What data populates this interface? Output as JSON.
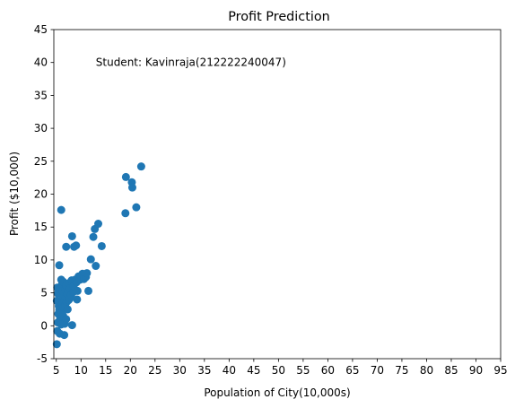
{
  "chart_data": {
    "type": "scatter",
    "title": "Profit Prediction",
    "xlabel": "Population of City(10,000s)",
    "ylabel": "Profit ($10,000)",
    "xlim": [
      4.5,
      95
    ],
    "ylim": [
      -5,
      45
    ],
    "x_ticks": [
      5,
      10,
      15,
      20,
      25,
      30,
      35,
      40,
      45,
      50,
      55,
      60,
      65,
      70,
      75,
      80,
      85,
      90,
      95
    ],
    "y_ticks": [
      -5,
      0,
      5,
      10,
      15,
      20,
      25,
      30,
      35,
      40,
      45
    ],
    "grid": false,
    "annotation": {
      "text": "Student: Kavinraja(212222240047)",
      "x": 13.0,
      "y": 40.0
    },
    "color": "#1f77b4",
    "points": [
      [
        5.1,
        -2.8
      ],
      [
        5.2,
        -0.8
      ],
      [
        5.3,
        0.5
      ],
      [
        5.4,
        1.8
      ],
      [
        5.5,
        3.0
      ],
      [
        5.1,
        3.8
      ],
      [
        5.3,
        4.9
      ],
      [
        5.2,
        5.8
      ],
      [
        5.6,
        2.4
      ],
      [
        5.7,
        -1.2
      ],
      [
        5.8,
        1.1
      ],
      [
        5.9,
        3.5
      ],
      [
        5.7,
        5.6
      ],
      [
        5.6,
        9.2
      ],
      [
        6.0,
        17.6
      ],
      [
        6.0,
        0.2
      ],
      [
        6.1,
        2.0
      ],
      [
        6.2,
        3.3
      ],
      [
        6.3,
        4.5
      ],
      [
        6.1,
        6.2
      ],
      [
        6.0,
        7.0
      ],
      [
        6.4,
        1.5
      ],
      [
        6.5,
        2.8
      ],
      [
        6.6,
        -1.4
      ],
      [
        6.3,
        5.3
      ],
      [
        6.4,
        6.7
      ],
      [
        6.7,
        0.3
      ],
      [
        6.8,
        3.0
      ],
      [
        6.9,
        4.3
      ],
      [
        6.8,
        5.4
      ],
      [
        7.0,
        1.0
      ],
      [
        7.0,
        6.1
      ],
      [
        7.1,
        3.6
      ],
      [
        7.2,
        4.8
      ],
      [
        7.0,
        12.0
      ],
      [
        7.3,
        2.5
      ],
      [
        7.4,
        5.2
      ],
      [
        7.5,
        3.9
      ],
      [
        7.6,
        6.5
      ],
      [
        7.7,
        4.1
      ],
      [
        7.8,
        5.7
      ],
      [
        8.0,
        4.7
      ],
      [
        8.1,
        6.9
      ],
      [
        8.2,
        0.1
      ],
      [
        8.2,
        13.6
      ],
      [
        8.4,
        5.1
      ],
      [
        8.5,
        6.0
      ],
      [
        8.6,
        12.0
      ],
      [
        8.8,
        7.0
      ],
      [
        9.0,
        12.2
      ],
      [
        9.1,
        6.6
      ],
      [
        9.2,
        4.0
      ],
      [
        9.3,
        5.3
      ],
      [
        9.5,
        7.5
      ],
      [
        9.8,
        7.0
      ],
      [
        10.0,
        7.6
      ],
      [
        10.3,
        7.9
      ],
      [
        10.6,
        7.1
      ],
      [
        11.0,
        7.4
      ],
      [
        11.2,
        8.0
      ],
      [
        11.5,
        5.3
      ],
      [
        12.0,
        10.1
      ],
      [
        12.5,
        13.5
      ],
      [
        12.8,
        14.7
      ],
      [
        13.0,
        9.1
      ],
      [
        13.5,
        15.5
      ],
      [
        14.2,
        12.1
      ],
      [
        19.0,
        17.1
      ],
      [
        19.1,
        22.6
      ],
      [
        20.3,
        21.8
      ],
      [
        20.4,
        21.0
      ],
      [
        21.2,
        18.0
      ],
      [
        22.2,
        24.2
      ]
    ]
  }
}
